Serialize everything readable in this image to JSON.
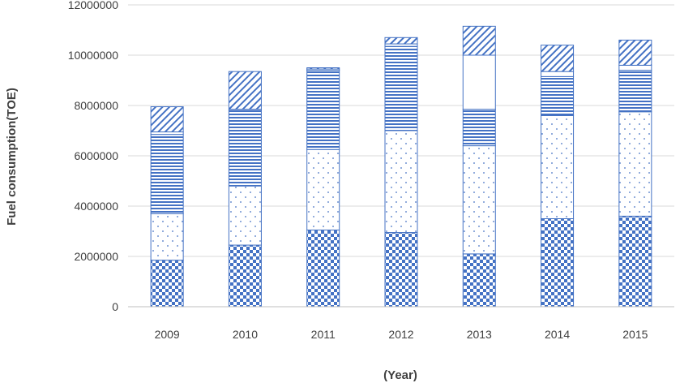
{
  "chart_data": {
    "type": "bar",
    "stacked": true,
    "title": "",
    "xlabel": "(Year)",
    "ylabel": "Fuel consumption(TOE)",
    "categories": [
      "2009",
      "2010",
      "2011",
      "2012",
      "2013",
      "2014",
      "2015"
    ],
    "ylim": [
      0,
      12000000
    ],
    "yticks": [
      0,
      2000000,
      4000000,
      6000000,
      8000000,
      10000000,
      12000000
    ],
    "ytick_labels": [
      "0",
      "2000000",
      "4000000",
      "6000000",
      "8000000",
      "10000000",
      "12000000"
    ],
    "grid": "horizontal",
    "legend": "none",
    "series": [
      {
        "pattern": "checker",
        "color": "#4472C4",
        "values": [
          1850000,
          2450000,
          3050000,
          2950000,
          2100000,
          3500000,
          3600000
        ]
      },
      {
        "pattern": "dots",
        "color": "#4472C4",
        "values": [
          1850000,
          2350000,
          3200000,
          4050000,
          4300000,
          4100000,
          4150000
        ]
      },
      {
        "pattern": "horizontal-lines",
        "color": "#4472C4",
        "values": [
          3150000,
          3000000,
          3150000,
          3350000,
          1450000,
          1550000,
          1650000
        ]
      },
      {
        "pattern": "blank",
        "color": "#4472C4",
        "values": [
          100000,
          50000,
          50000,
          100000,
          2150000,
          200000,
          200000
        ]
      },
      {
        "pattern": "diagonal-lines",
        "color": "#4472C4",
        "values": [
          1000000,
          1500000,
          50000,
          250000,
          1150000,
          1050000,
          1000000
        ]
      }
    ]
  }
}
